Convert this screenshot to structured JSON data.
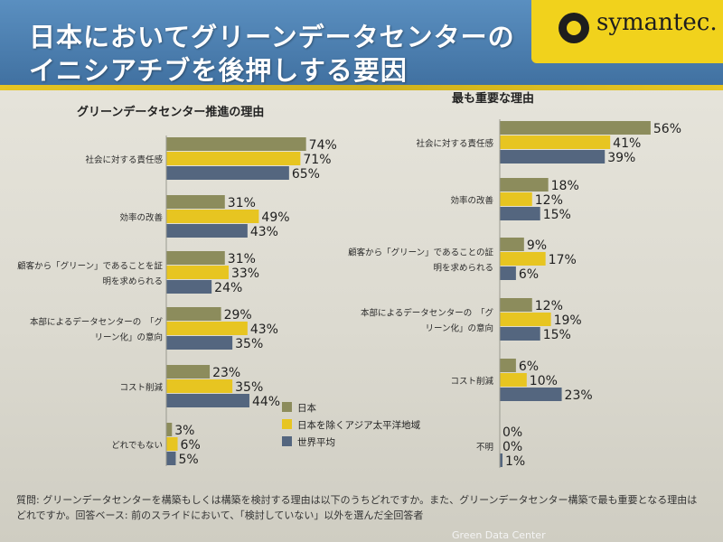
{
  "slide": {
    "title_line1": "日本においてグリーンデータセンターの",
    "title_line2": "イニシアチブを後押しする要因",
    "logo_text": "symantec.",
    "footnote": "質問: グリーンデータセンターを構築もしくは構築を検討する理由は以下のうちどれですか。また、グリーンデータセンター構築で最も重要となる理由はどれですか。回答ベース: 前のスライドにおいて、「検討していない」以外を選んだ全回答者",
    "footer": "Green Data Center"
  },
  "colors": {
    "series": [
      "#8c8c5c",
      "#e7c521",
      "#54667f"
    ]
  },
  "chart_data": [
    {
      "type": "bar",
      "orientation": "horizontal",
      "title": "グリーンデータセンター推進の理由",
      "categories": [
        "社会に対する責任感",
        "効率の改善",
        "顧客から「グリーン」であることを証明を求められる",
        "本部によるデータセンターの「グリーン化」の意向",
        "コスト削減",
        "どれでもない"
      ],
      "category_lines": [
        [
          "社会に対する責任感"
        ],
        [
          "効率の改善"
        ],
        [
          "顧客から「グリーン」であることを証",
          "明を求められる"
        ],
        [
          "本部によるデータセンターの　「グ",
          "リーン化」の意向"
        ],
        [
          "コスト削減"
        ],
        [
          "どれでもない"
        ]
      ],
      "series": [
        {
          "name": "日本",
          "values": [
            74,
            31,
            31,
            29,
            23,
            3
          ]
        },
        {
          "name": "日本を除くアジア太平洋地域",
          "values": [
            71,
            49,
            33,
            43,
            35,
            6
          ]
        },
        {
          "name": "世界平均",
          "values": [
            65,
            43,
            24,
            35,
            44,
            5
          ]
        }
      ],
      "value_suffix": "%",
      "legend": "bottom-right"
    },
    {
      "type": "bar",
      "orientation": "horizontal",
      "title": "最も重要な理由",
      "categories": [
        "社会に対する責任感",
        "効率の改善",
        "顧客から「グリーン」であることの証明を求められる",
        "本部によるデータセンターの「グリーン化」の意向",
        "コスト削減",
        "不明"
      ],
      "category_lines": [
        [
          "社会に対する責任感"
        ],
        [
          "効率の改善"
        ],
        [
          "顧客から「グリーン」であることの証",
          "明を求められる"
        ],
        [
          "本部によるデータセンターの　「グ",
          "リーン化」の意向"
        ],
        [
          "コスト削減"
        ],
        [
          "不明"
        ]
      ],
      "series": [
        {
          "name": "日本",
          "values": [
            56,
            18,
            9,
            12,
            6,
            0
          ]
        },
        {
          "name": "日本を除くアジア太平洋地域",
          "values": [
            41,
            12,
            17,
            19,
            10,
            0
          ]
        },
        {
          "name": "世界平均",
          "values": [
            39,
            15,
            6,
            15,
            23,
            1
          ]
        }
      ],
      "value_suffix": "%"
    }
  ]
}
